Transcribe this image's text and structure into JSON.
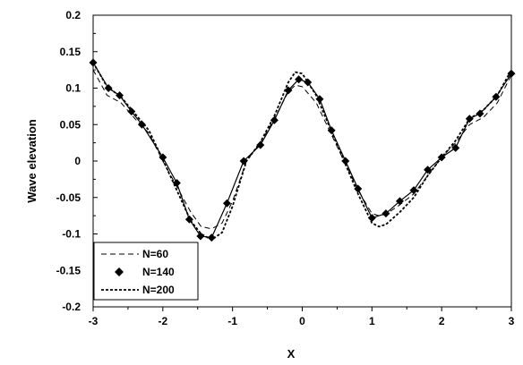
{
  "chart_data": {
    "type": "line",
    "xlabel": "X",
    "ylabel": "Wave elevation",
    "xlim": [
      -3,
      3
    ],
    "ylim": [
      -0.2,
      0.2
    ],
    "x_ticks": [
      "-3",
      "-2",
      "-1",
      "0",
      "1",
      "2",
      "3"
    ],
    "y_ticks": [
      "0.2",
      "0.15",
      "0.1",
      "0.05",
      "0",
      "-0.05",
      "-0.1",
      "-0.15",
      "-0.2"
    ],
    "grid": false,
    "legend_position": "bottom-left",
    "series": [
      {
        "name": "N=60",
        "style": "dashed",
        "x": [
          -3,
          -2.8,
          -2.6,
          -2.4,
          -2.2,
          -2.0,
          -1.8,
          -1.6,
          -1.45,
          -1.3,
          -1.15,
          -1.0,
          -0.8,
          -0.6,
          -0.4,
          -0.2,
          -0.1,
          0.0,
          0.2,
          0.4,
          0.6,
          0.8,
          1.0,
          1.1,
          1.2,
          1.4,
          1.6,
          1.8,
          2.0,
          2.2,
          2.4,
          2.6,
          2.8,
          3.0
        ],
        "y": [
          0.125,
          0.09,
          0.08,
          0.058,
          0.038,
          0.0,
          -0.035,
          -0.07,
          -0.09,
          -0.093,
          -0.085,
          -0.055,
          0.0,
          0.025,
          0.058,
          0.095,
          0.104,
          0.102,
          0.08,
          0.04,
          0.0,
          -0.04,
          -0.072,
          -0.075,
          -0.073,
          -0.06,
          -0.045,
          -0.02,
          0.005,
          0.025,
          0.05,
          0.06,
          0.08,
          0.118
        ]
      },
      {
        "name": "N=140",
        "style": "diamond-markers",
        "x": [
          -3.0,
          -2.78,
          -2.62,
          -2.45,
          -2.3,
          -2.0,
          -1.8,
          -1.62,
          -1.46,
          -1.3,
          -1.08,
          -0.84,
          -0.6,
          -0.4,
          -0.2,
          -0.05,
          0.08,
          0.25,
          0.42,
          0.62,
          0.8,
          1.0,
          1.2,
          1.4,
          1.6,
          1.8,
          2.0,
          2.2,
          2.4,
          2.55,
          2.78,
          3.0
        ],
        "y": [
          0.135,
          0.1,
          0.09,
          0.068,
          0.05,
          0.005,
          -0.03,
          -0.08,
          -0.103,
          -0.105,
          -0.058,
          0.0,
          0.022,
          0.056,
          0.097,
          0.112,
          0.108,
          0.085,
          0.042,
          0.0,
          -0.038,
          -0.078,
          -0.072,
          -0.055,
          -0.04,
          -0.012,
          0.005,
          0.018,
          0.058,
          0.065,
          0.088,
          0.12
        ]
      },
      {
        "name": "N=200",
        "style": "dotted-dash",
        "x": [
          -3,
          -2.8,
          -2.6,
          -2.4,
          -2.2,
          -2.0,
          -1.8,
          -1.6,
          -1.45,
          -1.3,
          -1.15,
          -1.0,
          -0.8,
          -0.6,
          -0.4,
          -0.2,
          -0.1,
          0.0,
          0.2,
          0.4,
          0.6,
          0.8,
          1.0,
          1.1,
          1.2,
          1.4,
          1.6,
          1.8,
          2.0,
          2.2,
          2.4,
          2.6,
          2.8,
          3.0
        ],
        "y": [
          0.135,
          0.102,
          0.088,
          0.065,
          0.042,
          0.002,
          -0.04,
          -0.082,
          -0.1,
          -0.108,
          -0.098,
          -0.062,
          0.0,
          0.026,
          0.062,
          0.108,
          0.122,
          0.12,
          0.09,
          0.045,
          0.0,
          -0.045,
          -0.085,
          -0.09,
          -0.087,
          -0.07,
          -0.05,
          -0.02,
          0.005,
          0.028,
          0.058,
          0.07,
          0.09,
          0.125
        ]
      }
    ]
  }
}
